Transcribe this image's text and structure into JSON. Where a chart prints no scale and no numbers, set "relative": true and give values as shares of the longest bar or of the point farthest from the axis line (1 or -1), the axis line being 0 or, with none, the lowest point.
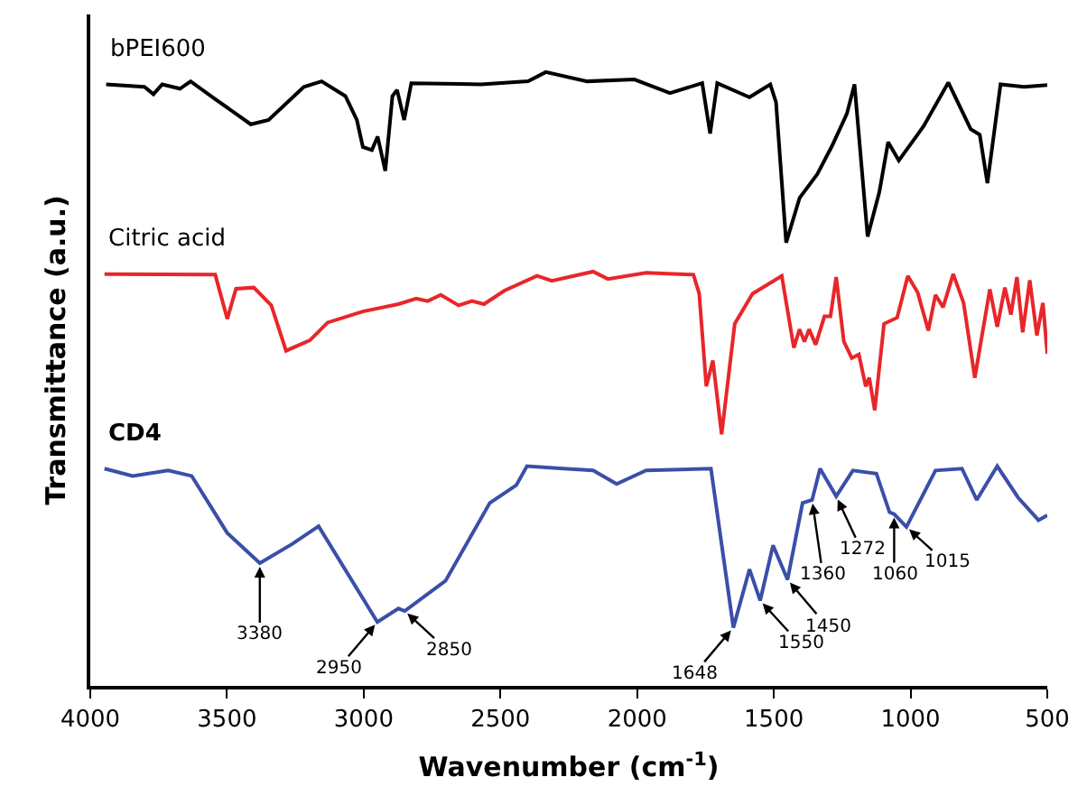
{
  "chart_data": {
    "type": "line",
    "relative": true,
    "xlabel": "Wavenumber (cm$^{-1}$)",
    "ylabel": "Transmittance (a.u.)",
    "xlim": [
      4000,
      500
    ],
    "xticks": [
      4000,
      3500,
      3000,
      2500,
      2000,
      1500,
      1000,
      500
    ],
    "legend": false,
    "series": [
      {
        "name": "bPEI600",
        "color": "#000000",
        "x": [
          3942,
          3802,
          3769,
          3737,
          3672,
          3633,
          3543,
          3413,
          3348,
          3219,
          3154,
          3067,
          3025,
          3003,
          2970,
          2949,
          2921,
          2895,
          2878,
          2852,
          2826,
          2571,
          2399,
          2334,
          2183,
          2010,
          1880,
          1762,
          1733,
          1707,
          1589,
          1513,
          1492,
          1455,
          1406,
          1341,
          1287,
          1233,
          1205,
          1157,
          1114,
          1082,
          1043,
          952,
          862,
          780,
          747,
          719,
          671,
          585,
          500
        ],
        "values": [
          0.98,
          0.976,
          0.964,
          0.98,
          0.973,
          0.985,
          0.956,
          0.915,
          0.922,
          0.976,
          0.985,
          0.961,
          0.922,
          0.878,
          0.873,
          0.895,
          0.839,
          0.961,
          0.971,
          0.922,
          0.982,
          0.98,
          0.985,
          1,
          0.985,
          0.988,
          0.966,
          0.982,
          0.9,
          0.982,
          0.959,
          0.98,
          0.951,
          0.722,
          0.795,
          0.834,
          0.88,
          0.932,
          0.98,
          0.732,
          0.805,
          0.886,
          0.856,
          0.912,
          0.983,
          0.907,
          0.898,
          0.819,
          0.98,
          0.976,
          0.979
        ]
      },
      {
        "name": "Citric acid",
        "color": "#e8262a",
        "x": [
          3948,
          3543,
          3499,
          3467,
          3402,
          3338,
          3284,
          3197,
          3132,
          3003,
          2873,
          2808,
          2766,
          2718,
          2653,
          2604,
          2560,
          2485,
          2366,
          2312,
          2161,
          2107,
          1967,
          1794,
          1773,
          1747,
          1723,
          1691,
          1643,
          1578,
          1471,
          1427,
          1406,
          1388,
          1371,
          1347,
          1315,
          1293,
          1272,
          1244,
          1215,
          1189,
          1164,
          1151,
          1131,
          1097,
          1049,
          1010,
          974,
          935,
          909,
          881,
          844,
          806,
          765,
          710,
          683,
          655,
          633,
          611,
          590,
          564,
          538,
          516,
          500
        ],
        "values": [
          0.671,
          0.67,
          0.598,
          0.647,
          0.649,
          0.62,
          0.546,
          0.563,
          0.592,
          0.61,
          0.622,
          0.631,
          0.627,
          0.637,
          0.62,
          0.627,
          0.622,
          0.644,
          0.668,
          0.66,
          0.675,
          0.663,
          0.673,
          0.67,
          0.639,
          0.488,
          0.53,
          0.41,
          0.59,
          0.639,
          0.668,
          0.551,
          0.581,
          0.561,
          0.581,
          0.556,
          0.602,
          0.602,
          0.666,
          0.561,
          0.534,
          0.54,
          0.488,
          0.502,
          0.449,
          0.59,
          0.6,
          0.668,
          0.641,
          0.579,
          0.637,
          0.617,
          0.671,
          0.624,
          0.502,
          0.646,
          0.585,
          0.649,
          0.605,
          0.666,
          0.576,
          0.661,
          0.571,
          0.624,
          0.541
        ]
      },
      {
        "name": "CD4",
        "color": "#3a4fa8",
        "x": [
          3948,
          3845,
          3715,
          3629,
          3499,
          3380,
          3262,
          3165,
          2950,
          2873,
          2850,
          2701,
          2539,
          2442,
          2403,
          2269,
          2161,
          2075,
          1967,
          1730,
          1648,
          1589,
          1550,
          1503,
          1450,
          1395,
          1360,
          1331,
          1272,
          1211,
          1125,
          1077,
          1060,
          1015,
          909,
          812,
          758,
          683,
          607,
          532,
          500
        ],
        "values": [
          0.354,
          0.342,
          0.351,
          0.342,
          0.249,
          0.2,
          0.231,
          0.26,
          0.104,
          0.126,
          0.122,
          0.171,
          0.298,
          0.327,
          0.358,
          0.354,
          0.351,
          0.329,
          0.351,
          0.354,
          0.095,
          0.19,
          0.139,
          0.229,
          0.173,
          0.298,
          0.303,
          0.354,
          0.309,
          0.351,
          0.346,
          0.283,
          0.28,
          0.259,
          0.351,
          0.354,
          0.303,
          0.358,
          0.307,
          0.27,
          0.278
        ]
      }
    ],
    "annotations": [
      {
        "text": "3380",
        "x": 3380,
        "y": 0.2
      },
      {
        "text": "2950",
        "x": 2950,
        "y": 0.104
      },
      {
        "text": "2850",
        "x": 2850,
        "y": 0.122
      },
      {
        "text": "1648",
        "x": 1648,
        "y": 0.095
      },
      {
        "text": "1550",
        "x": 1550,
        "y": 0.139
      },
      {
        "text": "1450",
        "x": 1450,
        "y": 0.173
      },
      {
        "text": "1360",
        "x": 1360,
        "y": 0.303
      },
      {
        "text": "1272",
        "x": 1272,
        "y": 0.309
      },
      {
        "text": "1060",
        "x": 1060,
        "y": 0.28
      },
      {
        "text": "1015",
        "x": 1015,
        "y": 0.259
      }
    ]
  }
}
